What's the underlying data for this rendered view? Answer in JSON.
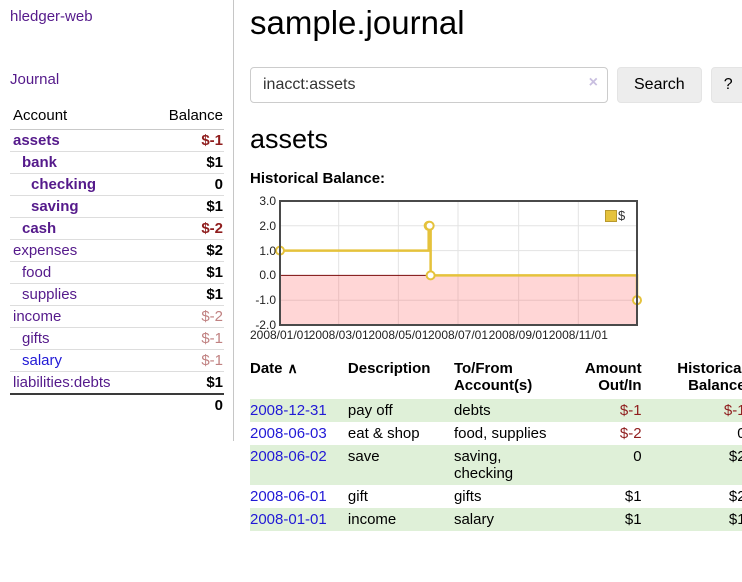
{
  "app": {
    "brand": "hledger-web",
    "nav_journal": "Journal"
  },
  "colors": {
    "link_purple": "#551A8B",
    "link_blue": "#2119D6",
    "negative_dark": "#8F1D1D",
    "negative_light": "#C08181",
    "row_stripe_green": "#DFF0D8",
    "chart_gold": "#E5C23C"
  },
  "sidebar": {
    "accounts": {
      "headers": [
        "Account",
        "Balance"
      ],
      "rows": [
        {
          "label": "assets",
          "indent": 1,
          "bold": true,
          "balance": "$-1",
          "negative": true,
          "blue": false
        },
        {
          "label": "bank",
          "indent": 2,
          "bold": true,
          "balance": "$1",
          "negative": false,
          "blue": false
        },
        {
          "label": "checking",
          "indent": 3,
          "bold": true,
          "balance": "0",
          "negative": false,
          "blue": false
        },
        {
          "label": "saving",
          "indent": 3,
          "bold": true,
          "balance": "$1",
          "negative": false,
          "blue": false
        },
        {
          "label": "cash",
          "indent": 2,
          "bold": true,
          "balance": "$-2",
          "negative": true,
          "blue": false
        },
        {
          "label": "expenses",
          "indent": 1,
          "bold": false,
          "balance": "$2",
          "negative": false,
          "blue": false
        },
        {
          "label": "food",
          "indent": 2,
          "bold": false,
          "balance": "$1",
          "negative": false,
          "blue": false
        },
        {
          "label": "supplies",
          "indent": 2,
          "bold": false,
          "balance": "$1",
          "negative": false,
          "blue": false
        },
        {
          "label": "income",
          "indent": 1,
          "bold": false,
          "balance": "$-2",
          "negative": true,
          "blue": false
        },
        {
          "label": "gifts",
          "indent": 2,
          "bold": false,
          "balance": "$-1",
          "negative": true,
          "blue": false
        },
        {
          "label": "salary",
          "indent": 2,
          "bold": false,
          "balance": "$-1",
          "negative": true,
          "blue": true
        },
        {
          "label": "liabilities:debts",
          "indent": 1,
          "bold": false,
          "balance": "$1",
          "negative": false,
          "blue": false
        }
      ],
      "total": "0"
    }
  },
  "main": {
    "title": "sample.journal",
    "search": {
      "value": "inacct:assets",
      "clear_icon": "×",
      "button_label": "Search",
      "help_label": "?"
    },
    "account_heading": "assets",
    "chart_heading": "Historical Balance:",
    "register": {
      "sort_icon": "∧",
      "headers": {
        "date": "Date",
        "description": "Description",
        "accounts": "To/From Account(s)",
        "amount": "Amount Out/In",
        "balance": "Historical Balance"
      },
      "rows": [
        {
          "date": "2008-12-31",
          "description": "pay off",
          "accounts": "debts",
          "amount": "$-1",
          "amount_negative": true,
          "balance": "$-1",
          "balance_negative": true
        },
        {
          "date": "2008-06-03",
          "description": "eat & shop",
          "accounts": "food, supplies",
          "amount": "$-2",
          "amount_negative": true,
          "balance": "0",
          "balance_negative": false
        },
        {
          "date": "2008-06-02",
          "description": "save",
          "accounts": "saving, checking",
          "amount": "0",
          "amount_negative": false,
          "balance": "$2",
          "balance_negative": false
        },
        {
          "date": "2008-06-01",
          "description": "gift",
          "accounts": "gifts",
          "amount": "$1",
          "amount_negative": false,
          "balance": "$2",
          "balance_negative": false
        },
        {
          "date": "2008-01-01",
          "description": "income",
          "accounts": "salary",
          "amount": "$1",
          "amount_negative": false,
          "balance": "$1",
          "balance_negative": false
        }
      ]
    }
  },
  "chart_data": {
    "type": "line",
    "step": true,
    "title": "Historical Balance:",
    "xlabel": "",
    "ylabel": "",
    "series": [
      {
        "name": "$",
        "color": "#E5C23C",
        "marker_fill": "#ffffff",
        "points": [
          [
            "2008-01-01",
            1
          ],
          [
            "2008-06-01",
            2
          ],
          [
            "2008-06-02",
            2
          ],
          [
            "2008-06-03",
            0
          ],
          [
            "2008-12-31",
            -1
          ]
        ]
      }
    ],
    "xlim": [
      "2008-01-01",
      "2008-12-31"
    ],
    "ylim": [
      -2,
      3
    ],
    "yticks": [
      3.0,
      2.0,
      1.0,
      0.0,
      -1.0,
      -2.0
    ],
    "xticks": [
      {
        "date": "2008-01-01",
        "label": "2008/01/01"
      },
      {
        "date": "2008-03-01",
        "label": "2008/03/01"
      },
      {
        "date": "2008-05-01",
        "label": "2008/05/01"
      },
      {
        "date": "2008-07-01",
        "label": "2008/07/01"
      },
      {
        "date": "2008-09-01",
        "label": "2008/09/01"
      },
      {
        "date": "2008-11-01",
        "label": "2008/11/01"
      }
    ],
    "grid": true,
    "grid_color": "#e3e3e3",
    "frame_color": "#4a4a4a",
    "zero_line_color": "#7A0A0A",
    "negative_fill": "rgba(255,92,92,0.25)",
    "legend_position": "top-right",
    "legend_swatch_border": "#B8992E"
  }
}
